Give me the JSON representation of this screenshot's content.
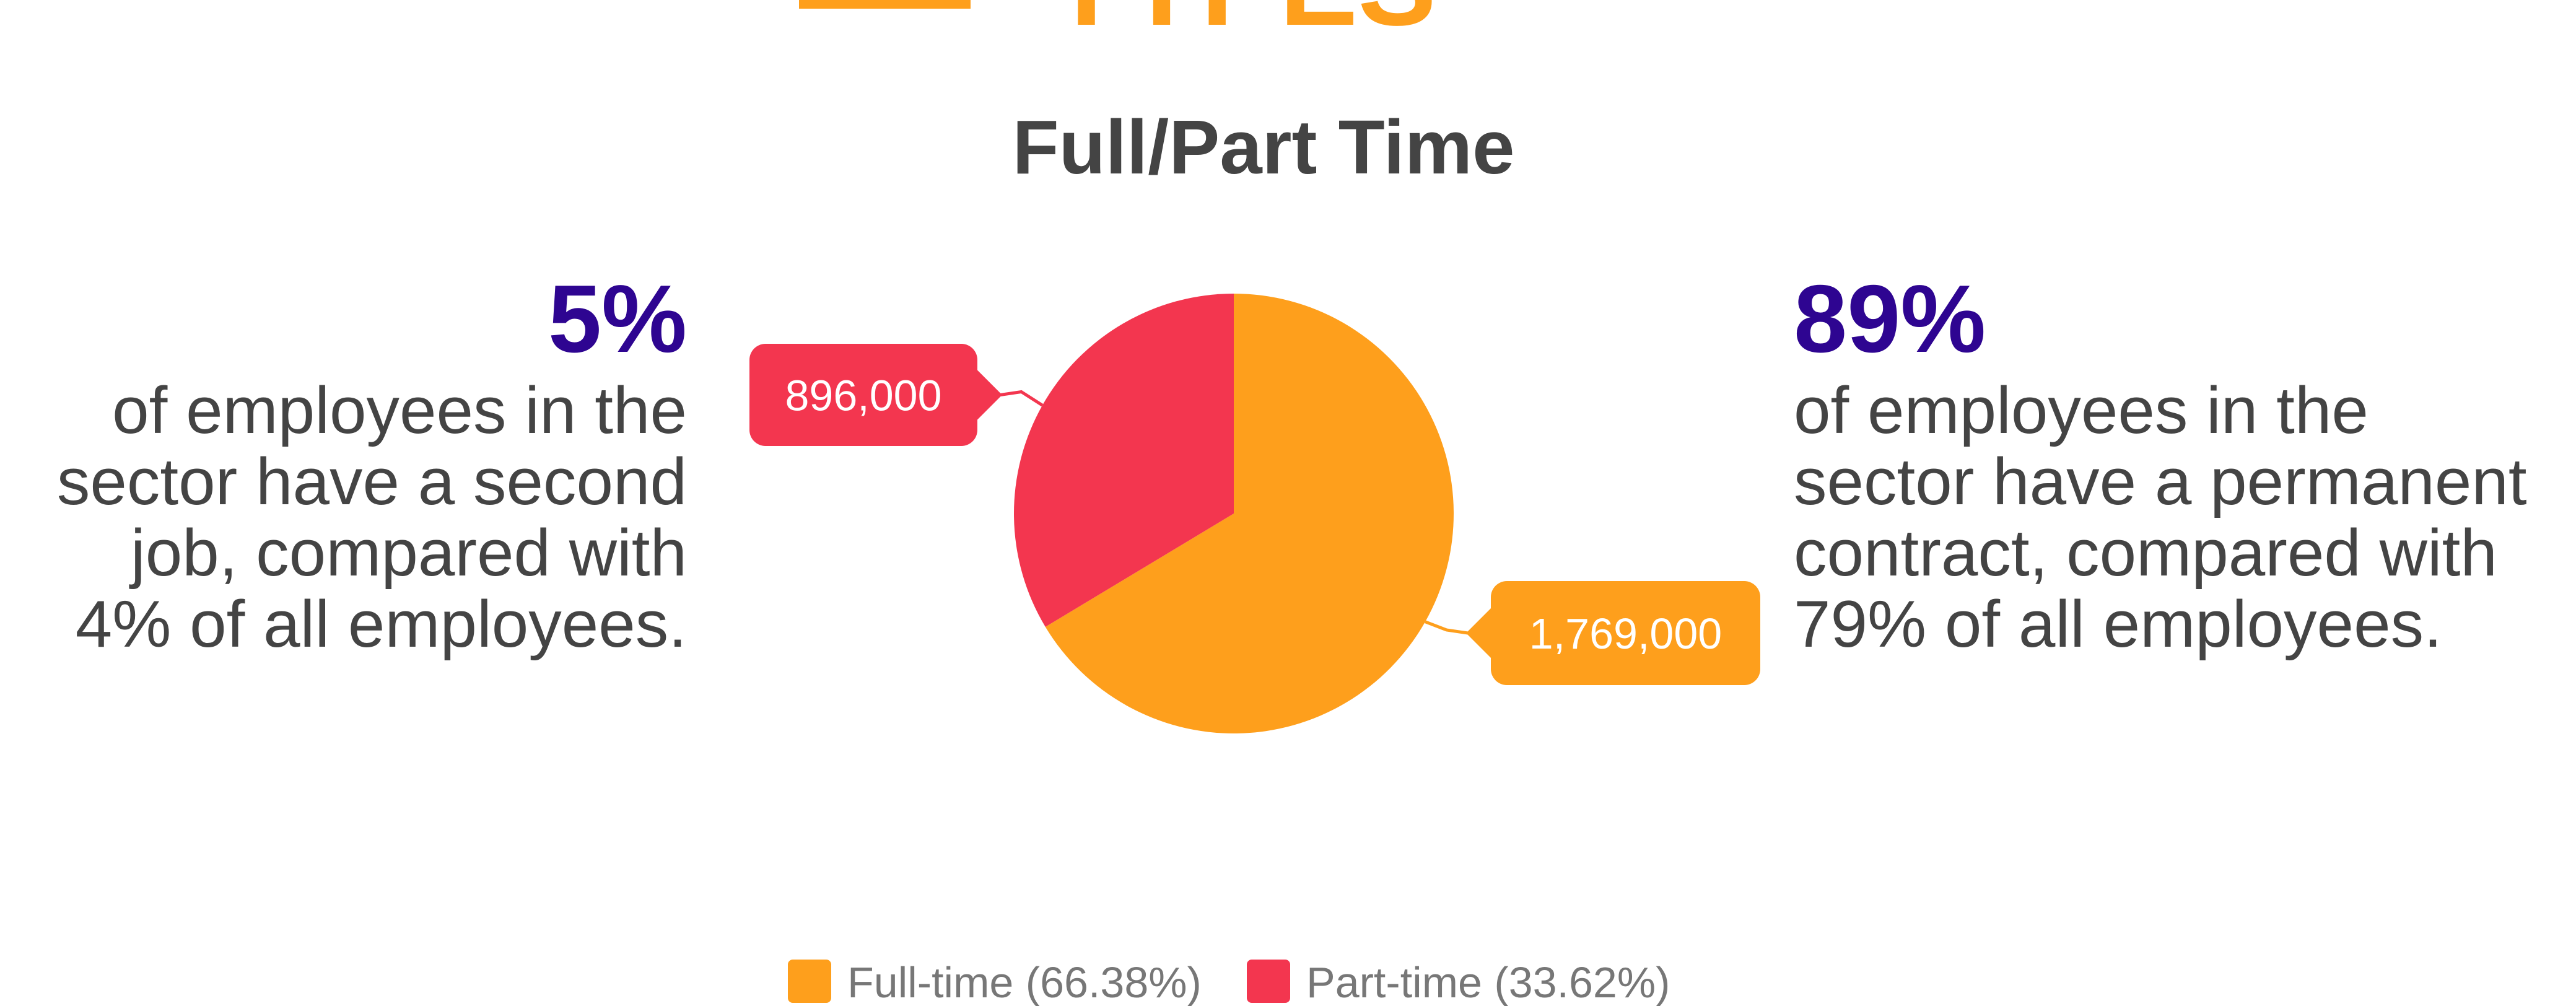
{
  "heading": "TYPES",
  "stats": [
    {
      "value": "5%",
      "lines": [
        "of employees in the",
        "sector have a second",
        "job, compared with",
        "4% of all employees."
      ]
    },
    {
      "value": "89%",
      "lines": [
        "of employees in the",
        "sector have a permanent",
        "contract, compared with",
        "79% of all employees."
      ]
    }
  ],
  "chart_data": {
    "type": "pie",
    "title": "Full/Part Time",
    "categories": [
      "Full-time (66.38%)",
      "Part-time (33.62%)"
    ],
    "values": [
      1769000,
      896000
    ],
    "value_labels": [
      "1,769,000",
      "896,000"
    ],
    "colors": [
      "#fe9f1c",
      "#f3364f"
    ],
    "legend": "bottom"
  }
}
